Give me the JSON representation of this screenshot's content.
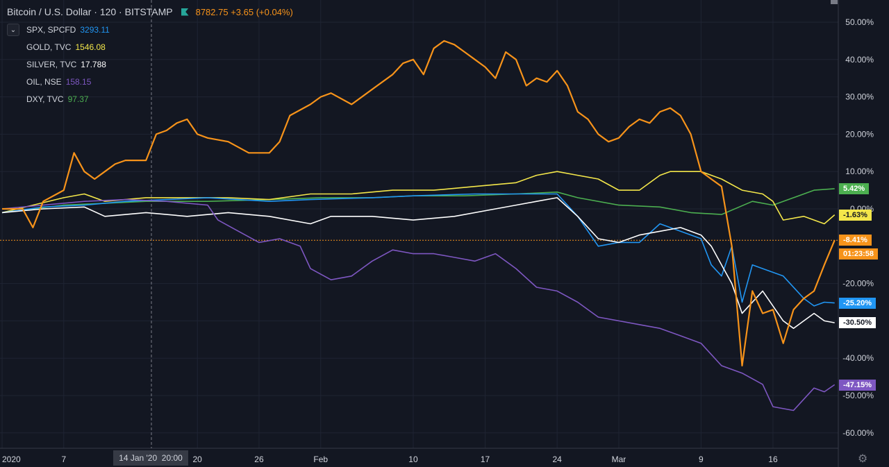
{
  "header": {
    "title": "Bitcoin / U.S. Dollar · 120 · BITSTAMP",
    "price": "8782.75 +3.65 (+0.04%)"
  },
  "comparisons": [
    {
      "symbol": "SPX, SPCFD",
      "value": "3293.11",
      "color": "#2196f3"
    },
    {
      "symbol": "GOLD, TVC",
      "value": "1546.08",
      "color": "#f4e74a"
    },
    {
      "symbol": "SILVER, TVC",
      "value": "17.788",
      "color": "#ffffff"
    },
    {
      "symbol": "OIL, NSE",
      "value": "158.15",
      "color": "#7e57c2"
    },
    {
      "symbol": "DXY, TVC",
      "value": "97.37",
      "color": "#4caf50"
    }
  ],
  "badges": [
    {
      "text": "5.42%",
      "bg": "#4caf50",
      "fg": "#ffffff",
      "y": 5.42
    },
    {
      "text": "-1.63%",
      "bg": "#f4e74a",
      "fg": "#131722",
      "y": -1.63
    },
    {
      "text": "-8.41%",
      "bg": "#f7931a",
      "fg": "#ffffff",
      "y": -8.41
    },
    {
      "text": "01:23:58",
      "bg": "#f7931a",
      "fg": "#ffffff",
      "y": -12.1
    },
    {
      "text": "-25.20%",
      "bg": "#2196f3",
      "fg": "#ffffff",
      "y": -25.2
    },
    {
      "text": "-30.50%",
      "bg": "#ffffff",
      "fg": "#131722",
      "y": -30.5
    },
    {
      "text": "-47.15%",
      "bg": "#7e57c2",
      "fg": "#ffffff",
      "y": -47.15
    }
  ],
  "crosshair_label": "14 Jan '20  20:00",
  "chart_data": {
    "type": "line",
    "ylim": [
      -64.5,
      58
    ],
    "xlim": [
      0,
      82.5
    ],
    "grid": true,
    "y_ticks": [
      "50.00%",
      "40.00%",
      "30.00%",
      "20.00%",
      "10.00%",
      "0.00%",
      "-20.00%",
      "-30.00%",
      "-40.00%",
      "-50.00%",
      "-60.00%"
    ],
    "x_ticks": [
      {
        "label": "2020",
        "x": 0
      },
      {
        "label": "7",
        "x": 6
      },
      {
        "label": "20",
        "x": 19
      },
      {
        "label": "26",
        "x": 25
      },
      {
        "label": "Feb",
        "x": 31
      },
      {
        "label": "10",
        "x": 40
      },
      {
        "label": "17",
        "x": 47
      },
      {
        "label": "24",
        "x": 54
      },
      {
        "label": "Mar",
        "x": 60
      },
      {
        "label": "9",
        "x": 68
      },
      {
        "label": "16",
        "x": 75
      }
    ],
    "series": [
      {
        "name": "DXY, TVC",
        "color": "#4caf50",
        "x": [
          0,
          3,
          6,
          10,
          14,
          20,
          26,
          31,
          36,
          40,
          45,
          50,
          54,
          56,
          60,
          64,
          67,
          70,
          73,
          75,
          77,
          79,
          81
        ],
        "y": [
          -1,
          0,
          1,
          1.5,
          2,
          2,
          2.5,
          3,
          3,
          3.5,
          3.5,
          4,
          4.5,
          3,
          1,
          0.5,
          -1,
          -1.5,
          2,
          1,
          3,
          5,
          5.4
        ]
      },
      {
        "name": "GOLD, TVC",
        "color": "#f4e74a",
        "x": [
          0,
          3,
          6,
          8,
          10,
          14,
          18,
          22,
          26,
          30,
          34,
          38,
          42,
          46,
          50,
          52,
          54,
          56,
          58,
          60,
          62,
          64,
          65,
          68,
          70,
          72,
          74,
          75,
          76,
          78,
          80,
          81
        ],
        "y": [
          -1,
          1,
          3,
          4,
          2,
          3,
          3,
          3,
          2.5,
          4,
          4,
          5,
          5,
          6,
          7,
          9,
          10,
          9,
          8,
          5,
          5,
          9,
          10,
          10,
          8,
          5,
          4,
          2,
          -3,
          -2,
          -4,
          -1.6
        ]
      },
      {
        "name": "SPX, SPCFD",
        "color": "#2196f3",
        "x": [
          0,
          4,
          8,
          12,
          16,
          20,
          26,
          30,
          36,
          40,
          46,
          50,
          54,
          56,
          58,
          60,
          62,
          64,
          66,
          68,
          69,
          70,
          71,
          72,
          73,
          74,
          76,
          78,
          79,
          80,
          81
        ],
        "y": [
          -1,
          0.5,
          1,
          2,
          2.5,
          3,
          2,
          2.5,
          3,
          3.5,
          4,
          4,
          4,
          -2,
          -10,
          -9,
          -9,
          -4,
          -6,
          -8,
          -15,
          -18,
          -10,
          -25,
          -15,
          -16,
          -18,
          -24,
          -26,
          -25,
          -25.2
        ]
      },
      {
        "name": "SILVER, TVC",
        "color": "#ffffff",
        "x": [
          0,
          4,
          8,
          10,
          14,
          18,
          22,
          26,
          30,
          32,
          36,
          40,
          44,
          48,
          50,
          52,
          54,
          56,
          58,
          60,
          62,
          64,
          66,
          68,
          69,
          70,
          71,
          72,
          74,
          75,
          76,
          77,
          78,
          79,
          80,
          81
        ],
        "y": [
          -1,
          0,
          0.5,
          -2,
          -1,
          -2,
          -1,
          -2,
          -4,
          -2,
          -2,
          -3,
          -2,
          0,
          1,
          2,
          3,
          -2,
          -8,
          -9,
          -7,
          -6,
          -5,
          -7,
          -10,
          -15,
          -20,
          -28,
          -22,
          -26,
          -30,
          -32,
          -30,
          -28,
          -30,
          -30.5
        ]
      },
      {
        "name": "OIL, NSE",
        "color": "#7e57c2",
        "x": [
          0,
          4,
          8,
          12,
          16,
          20,
          21,
          23,
          25,
          27,
          29,
          30,
          32,
          34,
          36,
          38,
          40,
          42,
          44,
          46,
          48,
          50,
          52,
          54,
          56,
          58,
          60,
          62,
          64,
          66,
          68,
          70,
          72,
          74,
          75,
          77,
          79,
          80,
          81
        ],
        "y": [
          0,
          1,
          2,
          2.5,
          2,
          1,
          -3,
          -6,
          -9,
          -8,
          -10,
          -16,
          -19,
          -18,
          -14,
          -11,
          -12,
          -12,
          -13,
          -14,
          -12,
          -16,
          -21,
          -22,
          -25,
          -29,
          -30,
          -31,
          -32,
          -34,
          -36,
          -42,
          -44,
          -47,
          -53,
          -54,
          -48,
          -49,
          -47.1
        ]
      },
      {
        "name": "Bitcoin / U.S. Dollar",
        "color": "#f7931a",
        "x": [
          0,
          2,
          3,
          4,
          6,
          7,
          8,
          9,
          10,
          11,
          12,
          14,
          15,
          16,
          17,
          18,
          19,
          20,
          22,
          24,
          26,
          27,
          28,
          30,
          31,
          32,
          34,
          36,
          38,
          39,
          40,
          41,
          42,
          43,
          44,
          45,
          46,
          47,
          48,
          49,
          50,
          51,
          52,
          53,
          54,
          55,
          56,
          57,
          58,
          59,
          60,
          61,
          62,
          63,
          64,
          65,
          66,
          67,
          68,
          69,
          70,
          71,
          72,
          73,
          74,
          75,
          76,
          77,
          78,
          79,
          80,
          81
        ],
        "y": [
          0,
          0,
          -5,
          2,
          5,
          15,
          10,
          8,
          10,
          12,
          13,
          13,
          20,
          21,
          23,
          24,
          20,
          19,
          18,
          15,
          15,
          18,
          25,
          28,
          30,
          31,
          28,
          32,
          36,
          39,
          40,
          36,
          43,
          45,
          44,
          42,
          40,
          38,
          35,
          42,
          40,
          33,
          35,
          34,
          37,
          33,
          26,
          24,
          20,
          18,
          19,
          22,
          24,
          23,
          26,
          27,
          25,
          20,
          10,
          8,
          6,
          -10,
          -42,
          -22,
          -28,
          -27,
          -36,
          -27,
          -24,
          -22,
          -15,
          -8.4
        ]
      }
    ]
  }
}
